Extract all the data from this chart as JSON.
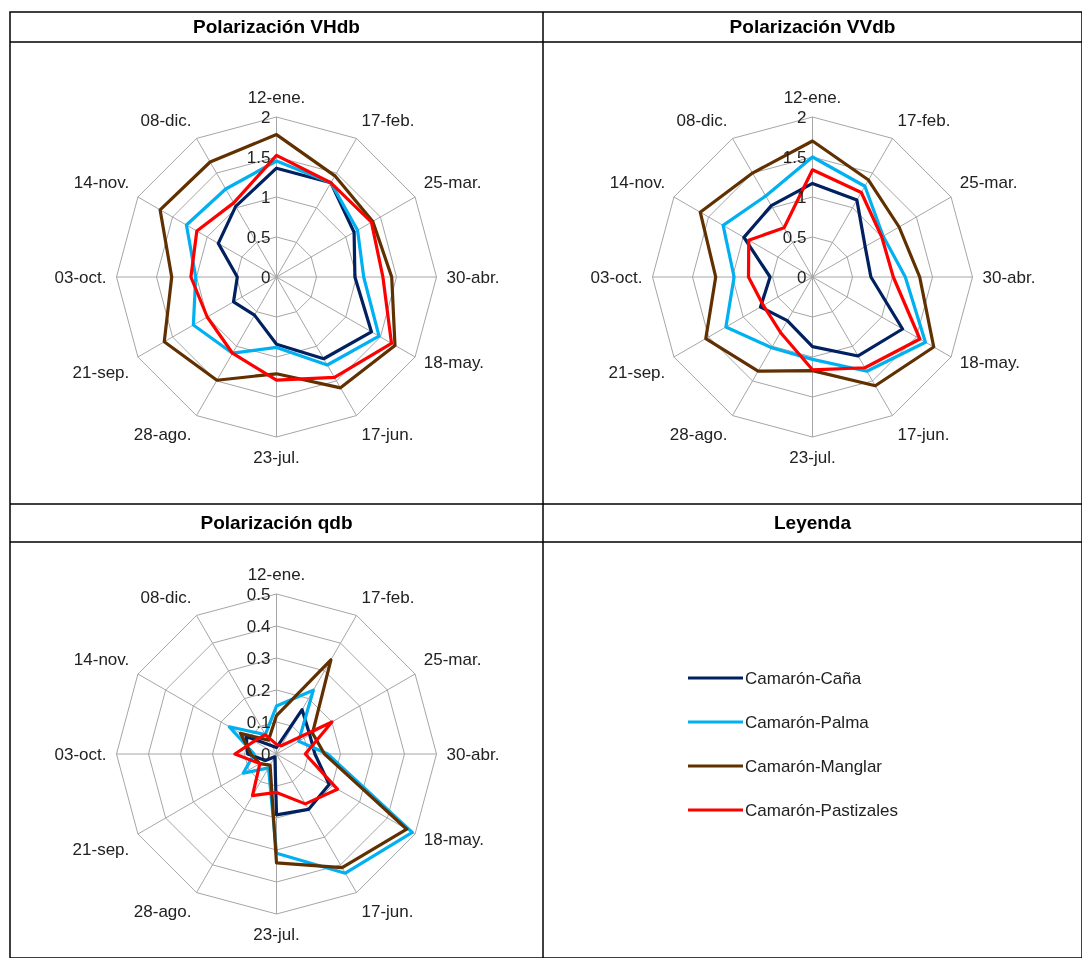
{
  "chart_data": [
    {
      "type": "radar",
      "title": "Polarización VHdb",
      "categories": [
        "12-ene.",
        "17-feb.",
        "25-mar.",
        "30-abr.",
        "18-may.",
        "17-jun.",
        "23-jul.",
        "28-ago.",
        "21-sep.",
        "03-oct.",
        "14-nov.",
        "08-dic."
      ],
      "ylim": [
        0,
        2
      ],
      "yticks": [
        0,
        0.5,
        1,
        1.5,
        2
      ],
      "grid": true,
      "marker": "none",
      "series": [
        {
          "color": "#002060",
          "values": [
            1.36,
            1.36,
            1.12,
            0.98,
            1.37,
            1.18,
            0.84,
            0.55,
            0.62,
            0.49,
            0.84,
            1.02
          ]
        },
        {
          "color": "#00b0f0",
          "values": [
            1.45,
            1.36,
            1.17,
            1.09,
            1.48,
            1.27,
            0.88,
            1.1,
            1.2,
            1.01,
            1.3,
            1.27
          ]
        },
        {
          "color": "#603000",
          "values": [
            1.78,
            1.46,
            1.39,
            1.44,
            1.71,
            1.6,
            1.21,
            1.49,
            1.62,
            1.31,
            1.68,
            1.66
          ]
        },
        {
          "color": "#ff0000",
          "values": [
            1.52,
            1.36,
            1.37,
            1.33,
            1.66,
            1.45,
            1.29,
            1.1,
            1.0,
            1.07,
            1.15,
            1.07
          ]
        }
      ]
    },
    {
      "type": "radar",
      "title": "Polarización VVdb",
      "categories": [
        "12-ene.",
        "17-feb.",
        "25-mar.",
        "30-abr.",
        "18-may.",
        "17-jun.",
        "23-jul.",
        "28-ago.",
        "21-sep.",
        "03-oct.",
        "14-nov.",
        "08-dic."
      ],
      "ylim": [
        0,
        2
      ],
      "yticks": [
        0,
        0.5,
        1,
        1.5,
        2
      ],
      "grid": true,
      "marker": "none",
      "series": [
        {
          "color": "#002060",
          "values": [
            1.17,
            1.11,
            0.76,
            0.73,
            1.3,
            1.14,
            0.87,
            0.63,
            0.75,
            0.53,
            0.99,
            1.03
          ]
        },
        {
          "color": "#00b0f0",
          "values": [
            1.5,
            1.31,
            1.02,
            1.16,
            1.63,
            1.36,
            1.03,
            1.02,
            1.25,
            0.98,
            1.29,
            1.17
          ]
        },
        {
          "color": "#603000",
          "values": [
            1.7,
            1.4,
            1.25,
            1.34,
            1.75,
            1.57,
            1.17,
            1.36,
            1.54,
            1.21,
            1.62,
            1.5
          ]
        },
        {
          "color": "#ff0000",
          "values": [
            1.34,
            1.22,
            1.0,
            1.01,
            1.55,
            1.31,
            1.16,
            0.8,
            0.71,
            0.8,
            0.92,
            0.71
          ]
        }
      ]
    },
    {
      "type": "radar",
      "title": "Polarización qdb",
      "categories": [
        "12-ene.",
        "17-feb.",
        "25-mar.",
        "30-abr.",
        "18-may.",
        "17-jun.",
        "23-jul.",
        "28-ago.",
        "21-sep.",
        "03-oct.",
        "14-nov.",
        "08-dic."
      ],
      "ylim": [
        0,
        0.5
      ],
      "yticks": [
        0,
        0.1,
        0.2,
        0.3,
        0.4,
        0.5
      ],
      "grid": true,
      "marker": "none",
      "legend": "right",
      "legend_title": "Leyenda",
      "series": [
        {
          "name": "Camarón-Caña",
          "color": "#002060",
          "values": [
            0.02,
            0.16,
            0.12,
            0.12,
            0.19,
            0.2,
            0.19,
            0.01,
            0.04,
            0.09,
            0.11,
            0.03
          ]
        },
        {
          "name": "Camarón-Palma",
          "color": "#00b0f0",
          "values": [
            0.15,
            0.23,
            0.08,
            0.16,
            0.49,
            0.43,
            0.31,
            0.05,
            0.12,
            0.07,
            0.17,
            0.07
          ]
        },
        {
          "name": "Camarón-Manglar",
          "color": "#603000",
          "values": [
            0.12,
            0.34,
            0.13,
            0.15,
            0.47,
            0.41,
            0.34,
            0.04,
            0.06,
            0.08,
            0.13,
            0.05
          ]
        },
        {
          "name": "Camarón-Pastizales",
          "color": "#ff0000",
          "values": [
            0.03,
            0.03,
            0.2,
            0.09,
            0.22,
            0.18,
            0.12,
            0.15,
            0.06,
            0.13,
            0.08,
            0.07
          ]
        }
      ]
    }
  ]
}
